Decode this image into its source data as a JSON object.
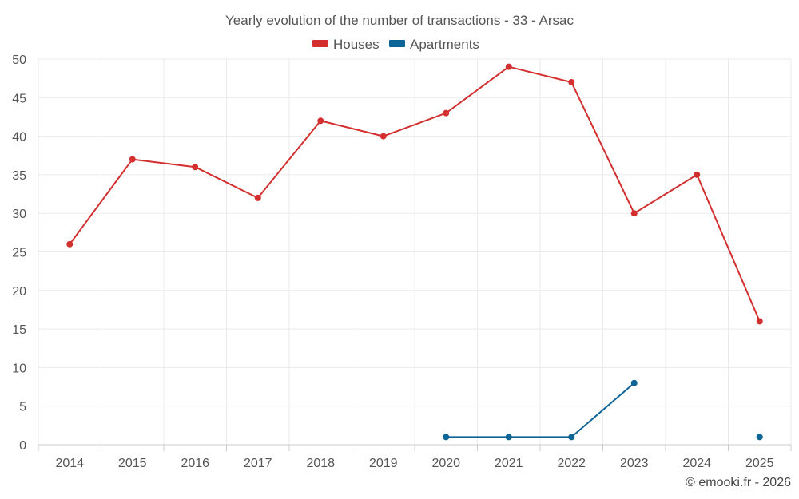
{
  "chart_data": {
    "type": "line",
    "title": "Yearly evolution of the number of transactions - 33 - Arsac",
    "categories": [
      "2014",
      "2015",
      "2016",
      "2017",
      "2018",
      "2019",
      "2020",
      "2021",
      "2022",
      "2023",
      "2024",
      "2025"
    ],
    "series": [
      {
        "name": "Houses",
        "color": "#d32f2f",
        "values": [
          26,
          37,
          36,
          32,
          42,
          40,
          43,
          49,
          47,
          30,
          35,
          16
        ]
      },
      {
        "name": "Apartments",
        "color": "#0d6496",
        "values": [
          null,
          null,
          null,
          null,
          null,
          null,
          1,
          1,
          1,
          8,
          null,
          1
        ]
      }
    ],
    "ylim": [
      0,
      50
    ],
    "yticks": [
      0,
      5,
      10,
      15,
      20,
      25,
      30,
      35,
      40,
      45,
      50
    ],
    "grid": true,
    "legend_position": "top-center"
  },
  "credit": "© emooki.fr - 2026"
}
